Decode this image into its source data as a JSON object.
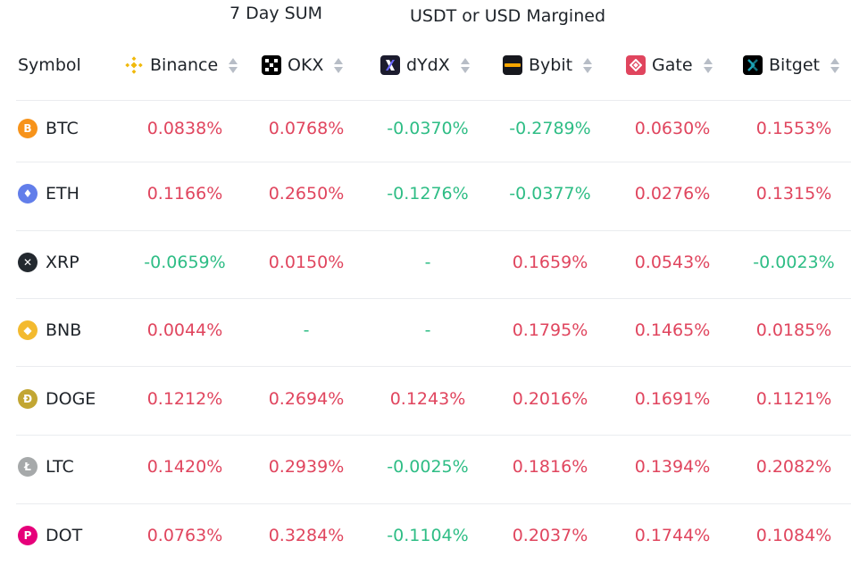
{
  "header": {
    "period_label": "7 Day SUM",
    "margin_label": "USDT or USD Margined",
    "symbol_label": "Symbol",
    "exchanges": [
      {
        "name": "Binance",
        "icon": "binance-icon"
      },
      {
        "name": "OKX",
        "icon": "okx-icon"
      },
      {
        "name": "dYdX",
        "icon": "dydx-icon"
      },
      {
        "name": "Bybit",
        "icon": "bybit-icon"
      },
      {
        "name": "Gate",
        "icon": "gate-icon"
      },
      {
        "name": "Bitget",
        "icon": "bitget-icon"
      }
    ]
  },
  "colors": {
    "positive": "#e0455e",
    "negative": "#2ebd85",
    "sort_arrow": "#b7bdc6"
  },
  "rows": [
    {
      "symbol": "BTC",
      "icon": "btc-icon",
      "icon_color": "#f7931a",
      "glyph": "B",
      "values": [
        "0.0838%",
        "0.0768%",
        "-0.0370%",
        "-0.2789%",
        "0.0630%",
        "0.1553%"
      ]
    },
    {
      "symbol": "ETH",
      "icon": "eth-icon",
      "icon_color": "#627eea",
      "glyph": "♦",
      "values": [
        "0.1166%",
        "0.2650%",
        "-0.1276%",
        "-0.0377%",
        "0.0276%",
        "0.1315%"
      ]
    },
    {
      "symbol": "XRP",
      "icon": "xrp-icon",
      "icon_color": "#23292f",
      "glyph": "✕",
      "values": [
        "-0.0659%",
        "0.0150%",
        "-",
        "0.1659%",
        "0.0543%",
        "-0.0023%"
      ]
    },
    {
      "symbol": "BNB",
      "icon": "bnb-icon",
      "icon_color": "#f3ba2f",
      "glyph": "◆",
      "values": [
        "0.0044%",
        "-",
        "-",
        "0.1795%",
        "0.1465%",
        "0.0185%"
      ]
    },
    {
      "symbol": "DOGE",
      "icon": "doge-icon",
      "icon_color": "#c2a633",
      "glyph": "Ð",
      "values": [
        "0.1212%",
        "0.2694%",
        "0.1243%",
        "0.2016%",
        "0.1691%",
        "0.1121%"
      ]
    },
    {
      "symbol": "LTC",
      "icon": "ltc-icon",
      "icon_color": "#a6a9aa",
      "glyph": "Ł",
      "values": [
        "0.1420%",
        "0.2939%",
        "-0.0025%",
        "0.1816%",
        "0.1394%",
        "0.2082%"
      ]
    },
    {
      "symbol": "DOT",
      "icon": "dot-icon",
      "icon_color": "#e6007a",
      "glyph": "P",
      "values": [
        "0.0763%",
        "0.3284%",
        "-0.1104%",
        "0.2037%",
        "0.1744%",
        "0.1084%"
      ]
    }
  ]
}
